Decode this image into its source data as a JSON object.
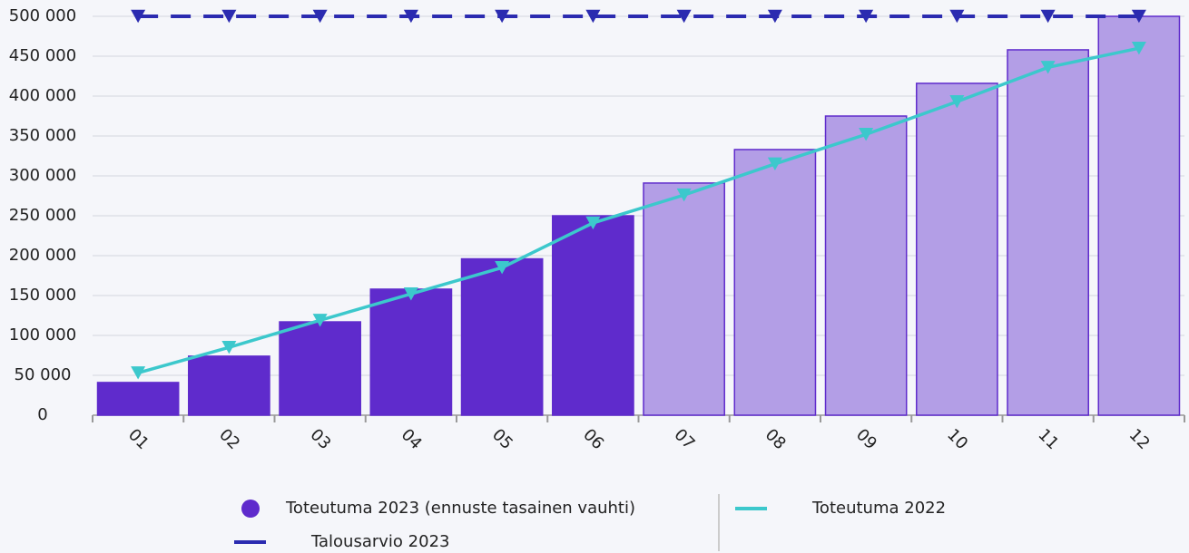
{
  "chart_data": {
    "type": "bar",
    "categories": [
      "01",
      "02",
      "03",
      "04",
      "05",
      "06",
      "07",
      "08",
      "09",
      "10",
      "11",
      "12"
    ],
    "series": [
      {
        "name": "Toteutuma 2023 (ennuste tasainen vauhti)",
        "type": "bar",
        "color": "#5f2bcc",
        "colors": [
          "#5f2bcc",
          "#5f2bcc",
          "#5f2bcc",
          "#5f2bcc",
          "#5f2bcc",
          "#5f2bcc",
          "#b39ee6",
          "#b39ee6",
          "#b39ee6",
          "#b39ee6",
          "#b39ee6",
          "#b39ee6"
        ],
        "values": [
          41000,
          74000,
          117000,
          158000,
          196000,
          250000,
          291000,
          333000,
          375000,
          416000,
          458000,
          500000
        ]
      },
      {
        "name": "Toteutuma 2022",
        "type": "line",
        "color": "#3cc8cc",
        "marker": "triangle-down",
        "values": [
          53000,
          85000,
          119000,
          152000,
          185000,
          241000,
          276000,
          315000,
          352000,
          393000,
          436000,
          460000
        ]
      },
      {
        "name": "Talousarvio 2023",
        "type": "line",
        "color": "#2b2bb0",
        "marker": "triangle-down",
        "line_style": "dashed",
        "values": [
          500000,
          500000,
          500000,
          500000,
          500000,
          500000,
          500000,
          500000,
          500000,
          500000,
          500000,
          500000
        ]
      }
    ],
    "ylim": [
      0,
      500000
    ],
    "yticks": [
      {
        "value": 0,
        "label": "0"
      },
      {
        "value": 50000,
        "label": "50 000"
      },
      {
        "value": 100000,
        "label": "100 000"
      },
      {
        "value": 150000,
        "label": "150 000"
      },
      {
        "value": 200000,
        "label": "200 000"
      },
      {
        "value": 250000,
        "label": "250 000"
      },
      {
        "value": 300000,
        "label": "300 000"
      },
      {
        "value": 350000,
        "label": "350 000"
      },
      {
        "value": 400000,
        "label": "400 000"
      },
      {
        "value": 450000,
        "label": "450 000"
      },
      {
        "value": 500000,
        "label": "500 000"
      }
    ],
    "grid": true
  }
}
